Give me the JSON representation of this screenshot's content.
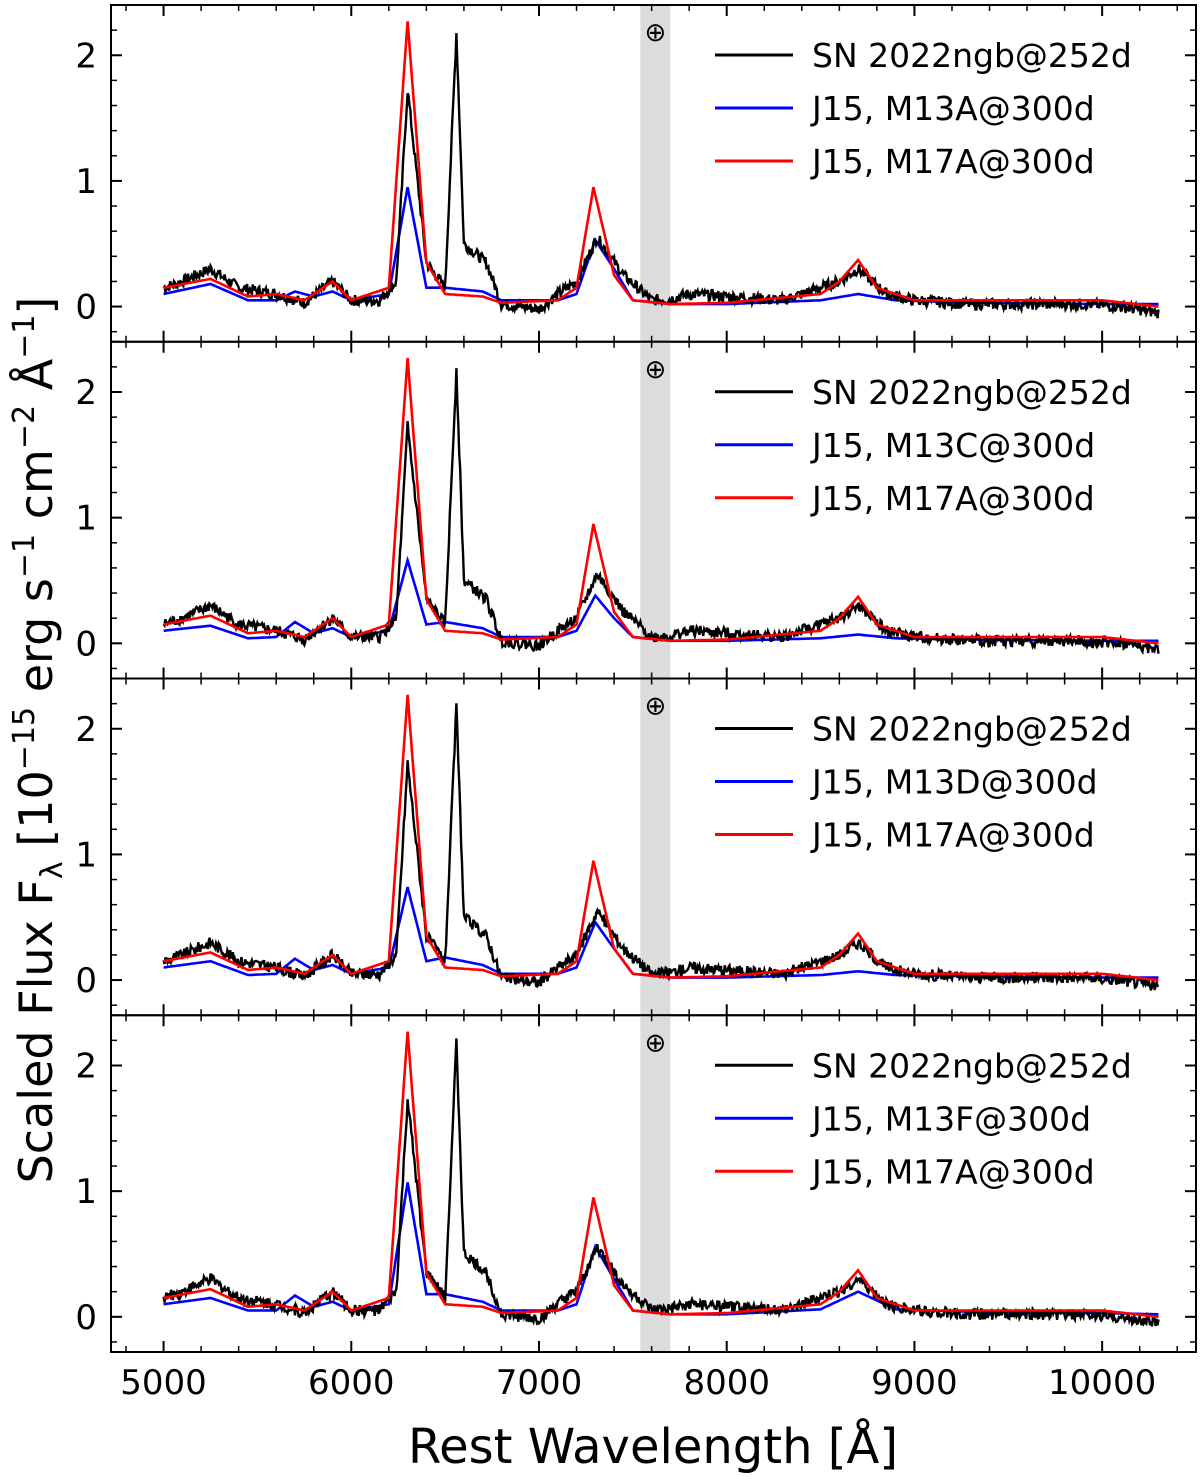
{
  "figure": {
    "xlabel": "Rest Wavelength [Å]",
    "ylabel_main": "Scaled Flux F",
    "ylabel_sub": "λ",
    "ylabel_unit_a": " [10",
    "ylabel_exp_a": "−15",
    "ylabel_unit_b": " erg s",
    "ylabel_exp_b": "−1",
    "ylabel_unit_c": " cm",
    "ylabel_exp_c": "−2",
    "ylabel_unit_d": " Å",
    "ylabel_exp_d": "−1",
    "ylabel_unit_e": "]",
    "telluric_symbol": "⊕"
  },
  "colors": {
    "observed": "#000000",
    "model_a": "#0000ff",
    "model_b": "#ff0000",
    "telluric_band": "#dcdcdc"
  },
  "chart_data": {
    "type": "line",
    "xlim": [
      4720,
      10500
    ],
    "ylim": [
      -0.28,
      2.4
    ],
    "xticks": [
      5000,
      6000,
      7000,
      8000,
      9000,
      10000
    ],
    "yticks": [
      0,
      1,
      2
    ],
    "telluric_band": [
      7540,
      7700
    ],
    "telluric_marker_x": 7620,
    "panels": [
      {
        "legend": [
          "SN 2022ngb@252d",
          "J15, M13A@300d",
          "J15, M17A@300d"
        ],
        "observed": {
          "name": "SN 2022ngb@252d",
          "x": [
            5000,
            5100,
            5250,
            5400,
            5600,
            5750,
            5900,
            6000,
            6150,
            6240,
            6300,
            6400,
            6500,
            6560,
            6600,
            6720,
            6800,
            7000,
            7100,
            7200,
            7310,
            7450,
            7600,
            7700,
            7800,
            8000,
            8300,
            8600,
            8700,
            8850,
            9000,
            9300,
            9600,
            9900,
            10100,
            10300
          ],
          "y": [
            0.15,
            0.2,
            0.3,
            0.15,
            0.1,
            0.03,
            0.2,
            0.05,
            0.05,
            0.2,
            1.73,
            0.35,
            0.15,
            2.18,
            0.5,
            0.35,
            0.02,
            -0.02,
            0.1,
            0.2,
            0.55,
            0.25,
            0.05,
            0.06,
            0.1,
            0.08,
            0.05,
            0.2,
            0.3,
            0.1,
            0.05,
            0.02,
            0.02,
            0.02,
            0,
            -0.05
          ]
        },
        "model_a": {
          "name": "J15, M13A@300d",
          "x": [
            5000,
            5250,
            5450,
            5600,
            5700,
            5800,
            5900,
            6000,
            6200,
            6300,
            6400,
            6500,
            6700,
            6800,
            7100,
            7200,
            7300,
            7400,
            7500,
            7700,
            8000,
            8500,
            8700,
            8900,
            9300,
            10000,
            10300
          ],
          "y": [
            0.1,
            0.18,
            0.05,
            0.05,
            0.12,
            0.08,
            0.12,
            0.05,
            0.1,
            0.95,
            0.15,
            0.15,
            0.12,
            0.05,
            0.05,
            0.1,
            0.53,
            0.3,
            0.05,
            0.02,
            0.02,
            0.05,
            0.1,
            0.05,
            0.03,
            0.02,
            0.02
          ]
        },
        "model_b": {
          "name": "J15, M17A@300d",
          "x": [
            5000,
            5250,
            5450,
            5600,
            5750,
            5900,
            6000,
            6200,
            6300,
            6400,
            6500,
            6700,
            6800,
            7100,
            7200,
            7290,
            7400,
            7500,
            7700,
            8000,
            8500,
            8600,
            8700,
            8800,
            9000,
            9300,
            9900,
            10000,
            10300
          ],
          "y": [
            0.15,
            0.22,
            0.08,
            0.1,
            0.05,
            0.2,
            0.05,
            0.15,
            2.27,
            0.35,
            0.1,
            0.08,
            0.03,
            0.05,
            0.15,
            0.95,
            0.25,
            0.05,
            0.02,
            0.03,
            0.1,
            0.2,
            0.37,
            0.15,
            0.05,
            0.05,
            0.05,
            0.05,
            0
          ]
        }
      },
      {
        "legend": [
          "SN 2022ngb@252d",
          "J15, M13C@300d",
          "J15, M17A@300d"
        ],
        "observed": {
          "name": "SN 2022ngb@252d",
          "x": [
            5000,
            5100,
            5250,
            5400,
            5600,
            5750,
            5900,
            6000,
            6150,
            6240,
            6300,
            6400,
            6500,
            6560,
            6600,
            6720,
            6800,
            7000,
            7100,
            7200,
            7310,
            7450,
            7600,
            7700,
            7800,
            8000,
            8300,
            8600,
            8700,
            8850,
            9000,
            9300,
            9600,
            9900,
            10100,
            10300
          ],
          "y": [
            0.15,
            0.2,
            0.3,
            0.15,
            0.1,
            0.03,
            0.2,
            0.05,
            0.05,
            0.2,
            1.73,
            0.35,
            0.15,
            2.18,
            0.5,
            0.35,
            0.02,
            -0.02,
            0.1,
            0.2,
            0.55,
            0.25,
            0.05,
            0.06,
            0.1,
            0.08,
            0.05,
            0.2,
            0.3,
            0.1,
            0.05,
            0.02,
            0.02,
            0.02,
            0,
            -0.05
          ]
        },
        "model_a": {
          "name": "J15, M13C@300d",
          "x": [
            5000,
            5250,
            5450,
            5600,
            5700,
            5800,
            5900,
            6000,
            6200,
            6300,
            6400,
            6500,
            6700,
            6800,
            7100,
            7200,
            7300,
            7400,
            7500,
            7700,
            8000,
            8500,
            8700,
            8900,
            9300,
            10000,
            10300
          ],
          "y": [
            0.1,
            0.14,
            0.04,
            0.05,
            0.17,
            0.08,
            0.12,
            0.05,
            0.1,
            0.66,
            0.15,
            0.17,
            0.12,
            0.05,
            0.05,
            0.1,
            0.38,
            0.2,
            0.05,
            0.02,
            0.02,
            0.04,
            0.07,
            0.04,
            0.03,
            0.02,
            0.02
          ]
        },
        "model_b": {
          "name": "J15, M17A@300d",
          "x": [
            5000,
            5250,
            5450,
            5600,
            5750,
            5900,
            6000,
            6200,
            6300,
            6400,
            6500,
            6700,
            6800,
            7100,
            7200,
            7290,
            7400,
            7500,
            7700,
            8000,
            8500,
            8600,
            8700,
            8800,
            9000,
            9300,
            9900,
            10000,
            10300
          ],
          "y": [
            0.15,
            0.22,
            0.08,
            0.1,
            0.05,
            0.2,
            0.05,
            0.15,
            2.27,
            0.35,
            0.1,
            0.08,
            0.03,
            0.05,
            0.15,
            0.95,
            0.25,
            0.05,
            0.02,
            0.03,
            0.1,
            0.2,
            0.37,
            0.15,
            0.05,
            0.05,
            0.05,
            0.05,
            0
          ]
        }
      },
      {
        "legend": [
          "SN 2022ngb@252d",
          "J15, M13D@300d",
          "J15, M17A@300d"
        ],
        "observed": {
          "name": "SN 2022ngb@252d",
          "x": [
            5000,
            5100,
            5250,
            5400,
            5600,
            5750,
            5900,
            6000,
            6150,
            6240,
            6300,
            6400,
            6500,
            6560,
            6600,
            6720,
            6800,
            7000,
            7100,
            7200,
            7310,
            7450,
            7600,
            7700,
            7800,
            8000,
            8300,
            8600,
            8700,
            8850,
            9000,
            9300,
            9600,
            9900,
            10100,
            10300
          ],
          "y": [
            0.15,
            0.2,
            0.3,
            0.15,
            0.1,
            0.03,
            0.2,
            0.05,
            0.05,
            0.2,
            1.73,
            0.35,
            0.15,
            2.18,
            0.5,
            0.35,
            0.02,
            -0.02,
            0.1,
            0.2,
            0.55,
            0.25,
            0.05,
            0.06,
            0.1,
            0.08,
            0.05,
            0.2,
            0.3,
            0.1,
            0.05,
            0.02,
            0.02,
            0.02,
            0,
            -0.05
          ]
        },
        "model_a": {
          "name": "J15, M13D@300d",
          "x": [
            5000,
            5250,
            5450,
            5600,
            5700,
            5800,
            5900,
            6000,
            6200,
            6300,
            6400,
            6500,
            6700,
            6800,
            7100,
            7200,
            7300,
            7400,
            7500,
            7700,
            8000,
            8500,
            8700,
            8900,
            9300,
            10000,
            10300
          ],
          "y": [
            0.1,
            0.15,
            0.04,
            0.05,
            0.17,
            0.08,
            0.12,
            0.05,
            0.1,
            0.74,
            0.15,
            0.18,
            0.12,
            0.05,
            0.05,
            0.1,
            0.46,
            0.25,
            0.05,
            0.02,
            0.02,
            0.04,
            0.07,
            0.04,
            0.03,
            0.02,
            0.02
          ]
        },
        "model_b": {
          "name": "J15, M17A@300d",
          "x": [
            5000,
            5250,
            5450,
            5600,
            5750,
            5900,
            6000,
            6200,
            6300,
            6400,
            6500,
            6700,
            6800,
            7100,
            7200,
            7290,
            7400,
            7500,
            7700,
            8000,
            8500,
            8600,
            8700,
            8800,
            9000,
            9300,
            9900,
            10000,
            10300
          ],
          "y": [
            0.15,
            0.22,
            0.08,
            0.1,
            0.05,
            0.2,
            0.05,
            0.15,
            2.27,
            0.35,
            0.1,
            0.08,
            0.03,
            0.05,
            0.15,
            0.95,
            0.25,
            0.05,
            0.02,
            0.03,
            0.1,
            0.2,
            0.37,
            0.15,
            0.05,
            0.05,
            0.05,
            0.05,
            0
          ]
        }
      },
      {
        "legend": [
          "SN 2022ngb@252d",
          "J15, M13F@300d",
          "J15, M17A@300d"
        ],
        "observed": {
          "name": "SN 2022ngb@252d",
          "x": [
            5000,
            5100,
            5250,
            5400,
            5600,
            5750,
            5900,
            6000,
            6150,
            6240,
            6300,
            6400,
            6500,
            6560,
            6600,
            6720,
            6800,
            7000,
            7100,
            7200,
            7310,
            7450,
            7600,
            7700,
            7800,
            8000,
            8300,
            8600,
            8700,
            8850,
            9000,
            9300,
            9600,
            9900,
            10100,
            10300
          ],
          "y": [
            0.15,
            0.2,
            0.3,
            0.15,
            0.1,
            0.03,
            0.2,
            0.05,
            0.05,
            0.2,
            1.73,
            0.35,
            0.15,
            2.18,
            0.5,
            0.35,
            0.02,
            -0.02,
            0.1,
            0.2,
            0.55,
            0.25,
            0.05,
            0.06,
            0.1,
            0.08,
            0.05,
            0.2,
            0.3,
            0.1,
            0.05,
            0.02,
            0.02,
            0.02,
            0,
            -0.05
          ]
        },
        "model_a": {
          "name": "J15, M13F@300d",
          "x": [
            5000,
            5250,
            5450,
            5600,
            5700,
            5800,
            5900,
            6000,
            6200,
            6300,
            6400,
            6500,
            6700,
            6800,
            7100,
            7200,
            7300,
            7400,
            7500,
            7700,
            8000,
            8500,
            8700,
            8900,
            9300,
            10000,
            10300
          ],
          "y": [
            0.1,
            0.15,
            0.05,
            0.05,
            0.17,
            0.08,
            0.12,
            0.05,
            0.1,
            1.07,
            0.18,
            0.18,
            0.12,
            0.05,
            0.05,
            0.1,
            0.56,
            0.3,
            0.05,
            0.02,
            0.02,
            0.06,
            0.2,
            0.06,
            0.04,
            0.03,
            0.02
          ]
        },
        "model_b": {
          "name": "J15, M17A@300d",
          "x": [
            5000,
            5250,
            5450,
            5600,
            5750,
            5900,
            6000,
            6200,
            6300,
            6400,
            6500,
            6700,
            6800,
            7100,
            7200,
            7290,
            7400,
            7500,
            7700,
            8000,
            8500,
            8600,
            8700,
            8800,
            9000,
            9300,
            9900,
            10000,
            10300
          ],
          "y": [
            0.15,
            0.22,
            0.08,
            0.1,
            0.05,
            0.2,
            0.05,
            0.15,
            2.27,
            0.35,
            0.1,
            0.08,
            0.03,
            0.05,
            0.15,
            0.95,
            0.25,
            0.05,
            0.02,
            0.03,
            0.1,
            0.2,
            0.37,
            0.15,
            0.05,
            0.05,
            0.05,
            0.05,
            0
          ]
        }
      }
    ]
  }
}
